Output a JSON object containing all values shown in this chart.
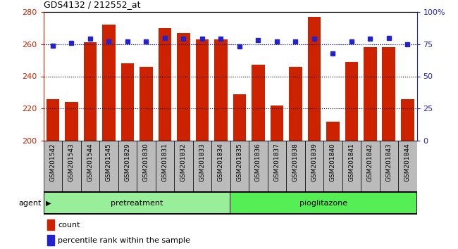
{
  "title": "GDS4132 / 212552_at",
  "categories": [
    "GSM201542",
    "GSM201543",
    "GSM201544",
    "GSM201545",
    "GSM201829",
    "GSM201830",
    "GSM201831",
    "GSM201832",
    "GSM201833",
    "GSM201834",
    "GSM201835",
    "GSM201836",
    "GSM201837",
    "GSM201838",
    "GSM201839",
    "GSM201840",
    "GSM201841",
    "GSM201842",
    "GSM201843",
    "GSM201844"
  ],
  "counts": [
    226,
    224,
    261,
    272,
    248,
    246,
    270,
    267,
    263,
    263,
    229,
    247,
    222,
    246,
    277,
    212,
    249,
    258,
    258,
    226
  ],
  "percentile": [
    74,
    76,
    79,
    77,
    77,
    77,
    80,
    79,
    79,
    79,
    73,
    78,
    77,
    77,
    79,
    68,
    77,
    79,
    80,
    75
  ],
  "group1_count": 10,
  "group2_count": 10,
  "group1_label": "pretreatment",
  "group2_label": "pioglitazone",
  "agent_label": "agent",
  "legend_count": "count",
  "legend_percentile": "percentile rank within the sample",
  "bar_color": "#cc2200",
  "dot_color": "#2222cc",
  "group1_color": "#99ee99",
  "group2_color": "#55ee55",
  "xlabel_bg_color": "#bbbbbb",
  "ylim_left": [
    200,
    280
  ],
  "ylim_right": [
    0,
    100
  ],
  "yticks_left": [
    200,
    220,
    240,
    260,
    280
  ],
  "yticks_right": [
    0,
    25,
    50,
    75,
    100
  ],
  "ytick_labels_right": [
    "0",
    "25",
    "50",
    "75",
    "100%"
  ],
  "grid_lines": [
    220,
    240,
    260
  ]
}
